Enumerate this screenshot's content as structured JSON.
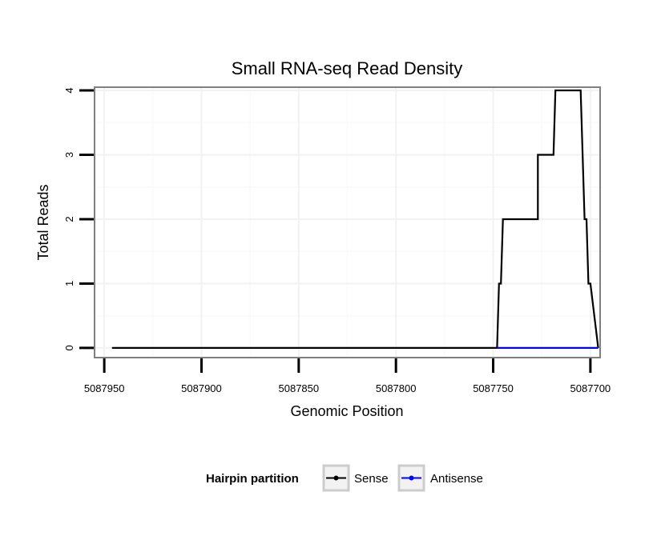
{
  "chart_data": {
    "type": "line",
    "title": "Small RNA-seq Read Density",
    "xlabel": "Genomic Position",
    "ylabel": "Total Reads",
    "xlim": [
      5087955,
      5087695
    ],
    "x_reversed": true,
    "ylim": [
      -0.15,
      4.05
    ],
    "x_ticks": [
      5087950,
      5087900,
      5087850,
      5087800,
      5087750,
      5087700
    ],
    "x_tick_labels": [
      "5087950",
      "5087900",
      "5087850",
      "5087800",
      "5087750",
      "5087700"
    ],
    "y_ticks": [
      0,
      1,
      2,
      3,
      4
    ],
    "y_tick_labels": [
      "0",
      "1",
      "2",
      "3",
      "4"
    ],
    "grid": true,
    "legend": {
      "title": "Hairpin partition",
      "placement": "bottom",
      "entries": [
        {
          "name": "Sense",
          "color": "#000000"
        },
        {
          "name": "Antisense",
          "color": "#0000ff"
        }
      ]
    },
    "series": [
      {
        "name": "Sense",
        "color": "#000000",
        "x": [
          5087946,
          5087748,
          5087747,
          5087746,
          5087745,
          5087745,
          5087727,
          5087727,
          5087719,
          5087718,
          5087705,
          5087703,
          5087702,
          5087701,
          5087700,
          5087696
        ],
        "y": [
          0,
          0,
          1,
          1,
          2,
          2,
          2,
          3,
          3,
          4,
          4,
          2,
          2,
          1,
          1,
          0
        ]
      },
      {
        "name": "Antisense",
        "color": "#0000ff",
        "x": [
          5087748,
          5087696
        ],
        "y": [
          0,
          0
        ]
      }
    ]
  }
}
